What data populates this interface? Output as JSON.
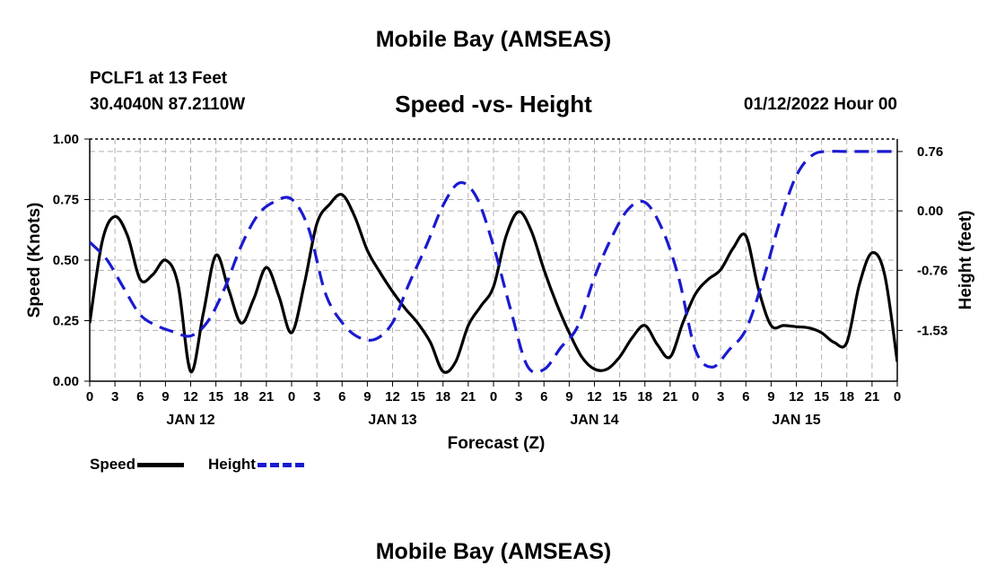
{
  "header": {
    "title": "Mobile Bay (AMSEAS)",
    "station": "PCLF1 at 13 Feet",
    "coords": "30.4040N  87.2110W",
    "subtitle": "Speed -vs- Height",
    "timestamp": "01/12/2022 Hour 00"
  },
  "footer": {
    "repeat_title": "Mobile Bay (AMSEAS)"
  },
  "legend": {
    "speed_label": "Speed",
    "height_label": "Height"
  },
  "colors": {
    "speed": "#000000",
    "height": "#1a1ad0",
    "grid": "#b0b0b0"
  },
  "chart_data": {
    "type": "line",
    "title": "Speed -vs- Height",
    "xlabel": "Forecast (Z)",
    "ylabel": "Speed (Knots)",
    "y2label": "Height (feet)",
    "x_unit": "hours from 01/12/2022 00Z",
    "xlim": [
      0,
      96
    ],
    "ylim": [
      0,
      1.0
    ],
    "y2lim": [
      -2.18,
      0.92
    ],
    "x_ticks": [
      0,
      3,
      6,
      9,
      12,
      15,
      18,
      21,
      24,
      27,
      30,
      33,
      36,
      39,
      42,
      45,
      48,
      51,
      54,
      57,
      60,
      63,
      66,
      69,
      72,
      75,
      78,
      81,
      84,
      87,
      90,
      93,
      96
    ],
    "x_tick_labels": [
      "0",
      "3",
      "6",
      "9",
      "12",
      "15",
      "18",
      "21",
      "0",
      "3",
      "6",
      "9",
      "12",
      "15",
      "18",
      "21",
      "0",
      "3",
      "6",
      "9",
      "12",
      "15",
      "18",
      "21",
      "0",
      "3",
      "6",
      "9",
      "12",
      "15",
      "18",
      "21",
      "0"
    ],
    "date_labels": [
      {
        "x": 12,
        "label": "JAN 12"
      },
      {
        "x": 36,
        "label": "JAN 13"
      },
      {
        "x": 60,
        "label": "JAN 14"
      },
      {
        "x": 84,
        "label": "JAN 15"
      }
    ],
    "y_ticks": [
      0,
      0.25,
      0.5,
      0.75,
      1.0
    ],
    "y_tick_labels": [
      "0.00",
      "0.25",
      "0.50",
      "0.75",
      "1.00"
    ],
    "y2_ticks": [
      0.76,
      0.0,
      -0.76,
      -1.53
    ],
    "y2_tick_labels": [
      "0.76",
      "0.00",
      "-0.76",
      "-1.53"
    ],
    "grid": true,
    "series": [
      {
        "name": "Speed",
        "axis": "left",
        "style": "solid",
        "x": [
          0,
          1.5,
          3,
          4.5,
          6,
          7.5,
          9,
          10.5,
          12,
          13.5,
          15,
          16.5,
          18,
          19.5,
          21,
          22.5,
          24,
          25.5,
          27,
          28.5,
          30,
          31.5,
          33,
          34.5,
          36,
          37.5,
          39,
          40.5,
          42,
          43.5,
          45,
          46.5,
          48,
          49.5,
          51,
          52.5,
          54,
          55.5,
          57,
          58.5,
          60,
          61.5,
          63,
          64.5,
          66,
          67.5,
          69,
          70.5,
          72,
          73.5,
          75,
          76.5,
          78,
          79.5,
          81,
          82.5,
          84,
          85.5,
          87,
          88.5,
          90,
          91.5,
          93,
          94.5,
          96
        ],
        "values": [
          0.24,
          0.58,
          0.68,
          0.6,
          0.42,
          0.44,
          0.5,
          0.4,
          0.04,
          0.28,
          0.52,
          0.38,
          0.24,
          0.34,
          0.47,
          0.35,
          0.2,
          0.4,
          0.65,
          0.73,
          0.77,
          0.68,
          0.54,
          0.45,
          0.37,
          0.3,
          0.24,
          0.16,
          0.04,
          0.08,
          0.23,
          0.31,
          0.39,
          0.6,
          0.7,
          0.62,
          0.46,
          0.32,
          0.2,
          0.1,
          0.05,
          0.05,
          0.1,
          0.18,
          0.23,
          0.15,
          0.1,
          0.24,
          0.36,
          0.42,
          0.46,
          0.55,
          0.6,
          0.38,
          0.23,
          0.23,
          0.225,
          0.22,
          0.2,
          0.16,
          0.16,
          0.4,
          0.53,
          0.44,
          0.08
        ]
      },
      {
        "name": "Height",
        "axis": "right",
        "style": "dashed",
        "x": [
          0,
          2,
          4,
          6,
          8,
          10,
          12,
          14,
          16,
          18,
          20,
          22,
          24,
          26,
          28,
          30,
          32,
          34,
          36,
          38,
          40,
          42,
          44,
          46,
          48,
          50,
          52,
          54,
          56,
          58,
          60,
          62,
          64,
          66,
          68,
          70,
          72,
          74,
          76,
          78,
          80,
          82,
          84,
          86,
          88,
          90,
          92,
          94,
          96
        ],
        "values": [
          -0.4,
          -0.62,
          -0.98,
          -1.33,
          -1.47,
          -1.55,
          -1.6,
          -1.42,
          -1.0,
          -0.45,
          -0.05,
          0.12,
          0.15,
          -0.22,
          -1.05,
          -1.43,
          -1.62,
          -1.64,
          -1.43,
          -0.92,
          -0.45,
          0.07,
          0.36,
          0.17,
          -0.45,
          -1.25,
          -1.98,
          -2.03,
          -1.75,
          -1.48,
          -0.85,
          -0.35,
          0.02,
          0.11,
          -0.22,
          -0.85,
          -1.78,
          -2.0,
          -1.78,
          -1.52,
          -0.9,
          -0.15,
          0.45,
          0.72,
          0.76,
          0.76,
          0.76,
          0.76,
          0.76
        ]
      }
    ]
  }
}
